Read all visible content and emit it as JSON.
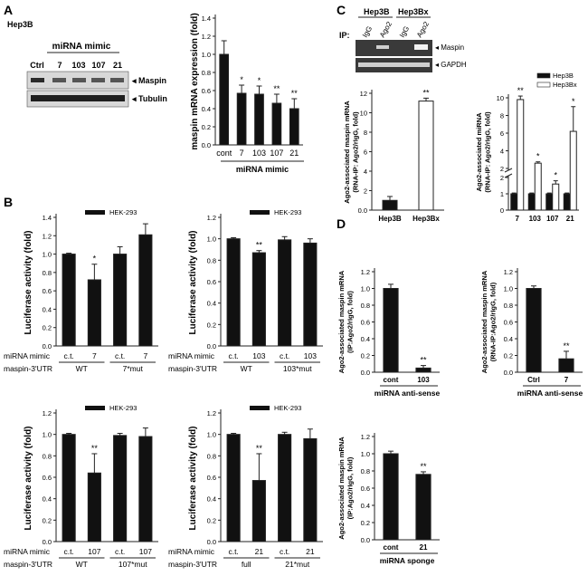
{
  "panel_labels": {
    "A": "A",
    "B": "B",
    "C": "C",
    "D": "D"
  },
  "colors": {
    "bar_black": "#111111",
    "bar_white": "#ffffff",
    "blot_bg": "#3a3a3a",
    "band": "#d9d9d9",
    "axis": "#222222"
  },
  "panelA_blot": {
    "cell": "Hep3B",
    "header": "miRNA mimic",
    "lanes": [
      "Ctrl",
      "7",
      "103",
      "107",
      "21"
    ],
    "bands": [
      "Maspin",
      "Tubulin"
    ]
  },
  "panelC_blot": {
    "groups": [
      "Hep3B",
      "Hep3Bx"
    ],
    "lanes": [
      "IgG",
      "Ago2",
      "IgG",
      "Ago2"
    ],
    "ip_label": "IP:",
    "bands": [
      "Maspin",
      "GAPDH"
    ]
  },
  "chart_data": [
    {
      "id": "A",
      "type": "bar",
      "title": "",
      "ylabel": "maspin mRNA expression (fold)",
      "xlabel": "miRNA mimic",
      "ylim": [
        0,
        1.4
      ],
      "yticks": [
        0,
        0.2,
        0.4,
        0.6,
        0.8,
        1.0,
        1.2,
        1.4
      ],
      "categories": [
        "cont",
        "7",
        "103",
        "107",
        "21"
      ],
      "values": [
        1.0,
        0.57,
        0.56,
        0.46,
        0.4
      ],
      "errors": [
        0.15,
        0.09,
        0.09,
        0.1,
        0.11
      ],
      "sig": [
        "",
        "*",
        "*",
        "**",
        "**"
      ]
    },
    {
      "id": "B1",
      "type": "bar",
      "legend": "HEK-293",
      "ylabel": "Luciferase activity (fold)",
      "ylim": [
        0,
        1.4
      ],
      "yticks": [
        0,
        0.2,
        0.4,
        0.6,
        0.8,
        1.0,
        1.2,
        1.4
      ],
      "categories": [
        "c.t.",
        "7",
        "c.t.",
        "7"
      ],
      "values": [
        1.0,
        0.72,
        1.0,
        1.21
      ],
      "errors": [
        0.01,
        0.17,
        0.08,
        0.12
      ],
      "sig": [
        "",
        "*",
        "",
        ""
      ],
      "row1_label": "miRNA mimic",
      "row2_label": "maspin-3'UTR",
      "groups": [
        "WT",
        "7*mut"
      ]
    },
    {
      "id": "B2",
      "type": "bar",
      "legend": "HEK-293",
      "ylabel": "Luciferase activity (fold)",
      "ylim": [
        0,
        1.2
      ],
      "yticks": [
        0,
        0.2,
        0.4,
        0.6,
        0.8,
        1.0,
        1.2
      ],
      "categories": [
        "c.t.",
        "103",
        "c.t.",
        "103"
      ],
      "values": [
        1.0,
        0.87,
        0.99,
        0.96
      ],
      "errors": [
        0.01,
        0.02,
        0.03,
        0.04
      ],
      "sig": [
        "",
        "**",
        "",
        ""
      ],
      "row1_label": "miRNA mimic",
      "row2_label": "maspin-3'UTR",
      "groups": [
        "WT",
        "103*mut"
      ]
    },
    {
      "id": "B3",
      "type": "bar",
      "legend": "HEK-293",
      "ylabel": "Luciferase activity (fold)",
      "ylim": [
        0,
        1.2
      ],
      "yticks": [
        0,
        0.2,
        0.4,
        0.6,
        0.8,
        1.0,
        1.2
      ],
      "categories": [
        "c.t.",
        "107",
        "c.t.",
        "107"
      ],
      "values": [
        1.0,
        0.64,
        0.99,
        0.98
      ],
      "errors": [
        0.01,
        0.18,
        0.02,
        0.08
      ],
      "sig": [
        "",
        "**",
        "",
        ""
      ],
      "row1_label": "miRNA mimic",
      "row2_label": "maspin-3'UTR",
      "groups": [
        "WT",
        "107*mut"
      ]
    },
    {
      "id": "B4",
      "type": "bar",
      "legend": "HEK-293",
      "ylabel": "Luciferase activity (fold)",
      "ylim": [
        0,
        1.2
      ],
      "yticks": [
        0,
        0.2,
        0.4,
        0.6,
        0.8,
        1.0,
        1.2
      ],
      "categories": [
        "c.t.",
        "21",
        "c.t.",
        "21"
      ],
      "values": [
        1.0,
        0.57,
        1.0,
        0.96
      ],
      "errors": [
        0.01,
        0.25,
        0.02,
        0.09
      ],
      "sig": [
        "",
        "**",
        "",
        ""
      ],
      "row1_label": "miRNA mimic",
      "row2_label": "maspin-3'UTR",
      "groups": [
        "full",
        "21*mut"
      ]
    },
    {
      "id": "C1",
      "type": "bar",
      "ylabel_lines": [
        "Ago2-associated maspin mRNA",
        "(RNA-IP: Ago2/rIgG, fold)"
      ],
      "ylim": [
        0,
        12
      ],
      "yticks": [
        0,
        2,
        4,
        6,
        8,
        10,
        12
      ],
      "categories": [
        "Hep3B",
        "Hep3Bx"
      ],
      "values": [
        1.0,
        11.2
      ],
      "errors": [
        0.4,
        0.3
      ],
      "fills": [
        "black",
        "white"
      ],
      "sig": [
        "",
        "**"
      ]
    },
    {
      "id": "C2",
      "type": "bar",
      "ylabel_lines": [
        "Ago2-associated miRNA",
        "(RNA-IP: Ago2/rIgG, fold)"
      ],
      "legend": [
        "Hep3B",
        "Hep3Bx"
      ],
      "categories": [
        "7",
        "103",
        "107",
        "21"
      ],
      "yticks_top": [
        2,
        4,
        6,
        8,
        10
      ],
      "yticks_bottom": [
        0,
        1,
        2
      ],
      "series": [
        {
          "name": "Hep3B",
          "values": [
            1.0,
            1.0,
            1.0,
            1.0
          ],
          "errors": [
            0.05,
            0.05,
            0.05,
            0.05
          ]
        },
        {
          "name": "Hep3Bx",
          "values": [
            9.8,
            2.6,
            1.6,
            6.2
          ],
          "errors": [
            0.4,
            0.15,
            0.2,
            2.8
          ]
        }
      ],
      "sig": [
        "**",
        "*",
        "*",
        "*"
      ]
    },
    {
      "id": "D1",
      "type": "bar",
      "ylabel_lines": [
        "Ago2-associated maspin mRNA",
        "(IP:Ago2/rIgG, fold)"
      ],
      "ylim": [
        0,
        1.2
      ],
      "yticks": [
        0,
        0.2,
        0.4,
        0.6,
        0.8,
        1.0,
        1.2
      ],
      "categories": [
        "cont",
        "103"
      ],
      "values": [
        1.0,
        0.05
      ],
      "errors": [
        0.05,
        0.03
      ],
      "sig": [
        "",
        "**"
      ],
      "xlabel": "miRNA anti-sense"
    },
    {
      "id": "D2",
      "type": "bar",
      "ylabel_lines": [
        "Ago2-associated maspin mRNA",
        "(RNA-IP:Ago2/rIgG, fold)"
      ],
      "ylim": [
        0,
        1.2
      ],
      "yticks": [
        0,
        0.2,
        0.4,
        0.6,
        0.8,
        1.0,
        1.2
      ],
      "categories": [
        "Ctrl",
        "7"
      ],
      "values": [
        1.0,
        0.16
      ],
      "errors": [
        0.03,
        0.09
      ],
      "sig": [
        "",
        "**"
      ],
      "xlabel": "miRNA anti-sense"
    },
    {
      "id": "D3",
      "type": "bar",
      "ylabel_lines": [
        "Ago2-associated maspin mRNA",
        "(IP:Ago2/rIgG, fold)"
      ],
      "ylim": [
        0,
        1.2
      ],
      "yticks": [
        0,
        0.2,
        0.4,
        0.6,
        0.8,
        1.0,
        1.2
      ],
      "categories": [
        "cont",
        "21"
      ],
      "values": [
        1.0,
        0.76
      ],
      "errors": [
        0.03,
        0.03
      ],
      "sig": [
        "",
        "**"
      ],
      "xlabel": "miRNA sponge"
    }
  ]
}
